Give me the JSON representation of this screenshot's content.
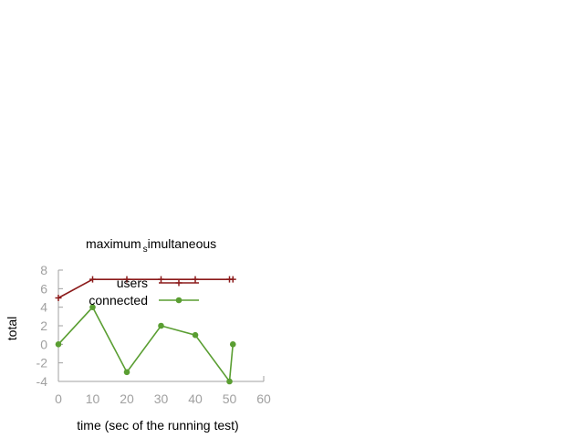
{
  "chart_data": {
    "type": "line",
    "title_main": "maximum",
    "title_sub": "s",
    "title_rest": "imultaneous",
    "xlabel": "time (sec of the running test)",
    "ylabel": "total",
    "xlim": [
      0,
      60
    ],
    "ylim": [
      -4,
      8
    ],
    "xticks": [
      0,
      10,
      20,
      30,
      40,
      50,
      60
    ],
    "yticks": [
      -4,
      -2,
      0,
      2,
      4,
      6,
      8
    ],
    "grid": false,
    "legend_position": "top-right",
    "series": [
      {
        "name": "users",
        "color": "#8b1a1a",
        "marker": "plus",
        "x": [
          0,
          10,
          20,
          30,
          40,
          50,
          51
        ],
        "y": [
          5,
          7,
          7,
          7,
          7,
          7,
          7
        ]
      },
      {
        "name": "connected",
        "color": "#5a9e32",
        "marker": "dot",
        "x": [
          0,
          10,
          20,
          30,
          40,
          50,
          51
        ],
        "y": [
          0,
          4,
          -3,
          2,
          1,
          -4,
          0
        ]
      }
    ]
  }
}
